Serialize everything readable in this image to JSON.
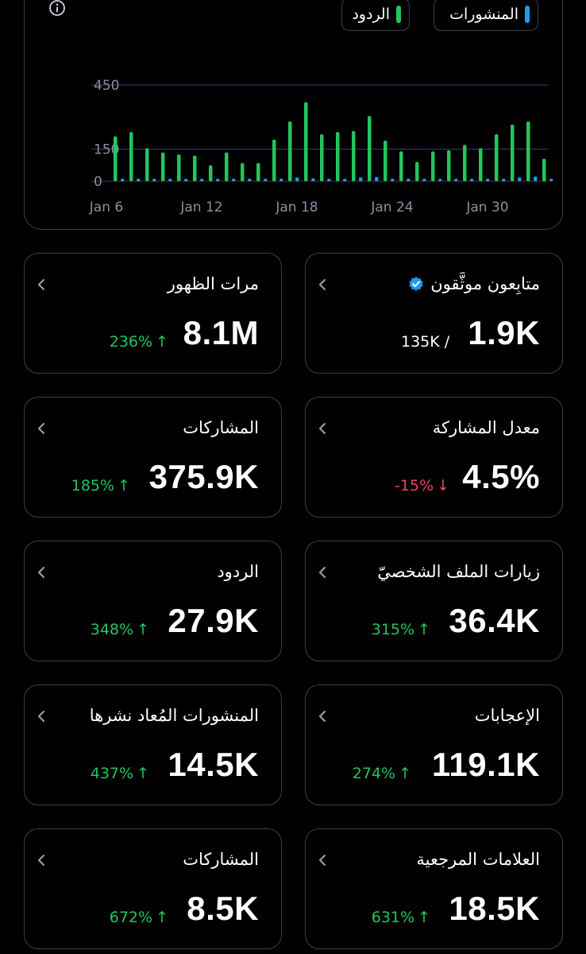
{
  "chart": {
    "legend": [
      {
        "label": "المنشورات",
        "color": "#1d9bf0"
      },
      {
        "label": "الردود",
        "color": "#22c55e"
      }
    ]
  },
  "chart_data": {
    "type": "bar",
    "title": "",
    "xlabel": "",
    "ylabel": "",
    "y_tick_labels": [
      "450",
      "150",
      "0"
    ],
    "ylim": [
      0,
      450
    ],
    "x_tick_labels": [
      "Jan 6",
      "Jan 12",
      "Jan 18",
      "Jan 24",
      "Jan 30"
    ],
    "categories": [
      "Jan 6",
      "Jan 7",
      "Jan 8",
      "Jan 9",
      "Jan 10",
      "Jan 11",
      "Jan 12",
      "Jan 13",
      "Jan 14",
      "Jan 15",
      "Jan 16",
      "Jan 17",
      "Jan 18",
      "Jan 19",
      "Jan 20",
      "Jan 21",
      "Jan 22",
      "Jan 23",
      "Jan 24",
      "Jan 25",
      "Jan 26",
      "Jan 27",
      "Jan 28",
      "Jan 29",
      "Jan 30",
      "Jan 31",
      "Feb 1",
      "Feb 2"
    ],
    "grid": true,
    "series": [
      {
        "name": "الردود",
        "color": "#22c55e",
        "values": [
          210,
          230,
          155,
          135,
          125,
          120,
          75,
          135,
          85,
          85,
          195,
          280,
          370,
          220,
          230,
          235,
          305,
          190,
          140,
          90,
          140,
          145,
          170,
          155,
          220,
          265,
          280,
          105
        ]
      },
      {
        "name": "المنشورات",
        "color": "#1d9bf0",
        "values": [
          12,
          12,
          12,
          12,
          12,
          12,
          12,
          12,
          12,
          12,
          12,
          18,
          14,
          12,
          12,
          18,
          20,
          12,
          12,
          12,
          12,
          12,
          12,
          12,
          12,
          18,
          22,
          12
        ]
      }
    ]
  },
  "cards": [
    {
      "title": "متابِعون موثَّقون",
      "value": "1.9K",
      "sub": "135K / ",
      "verified": true
    },
    {
      "title": "مرات الظهور",
      "value": "8.1M",
      "change": "236%",
      "dir": "up"
    },
    {
      "title": "معدل المشاركة",
      "value": "4.5%",
      "change": "-15%",
      "dir": "down"
    },
    {
      "title": "المشاركات",
      "value": "375.9K",
      "change": "185%",
      "dir": "up"
    },
    {
      "title": "زيارات الملف الشخصيّ",
      "value": "36.4K",
      "change": "315%",
      "dir": "up"
    },
    {
      "title": "الردود",
      "value": "27.9K",
      "change": "348%",
      "dir": "up"
    },
    {
      "title": "الإعجابات",
      "value": "119.1K",
      "change": "274%",
      "dir": "up"
    },
    {
      "title": "المنشورات المُعاد نشرها",
      "value": "14.5K",
      "change": "437%",
      "dir": "up"
    },
    {
      "title": "العلامات المرجعية",
      "value": "18.5K",
      "change": "631%",
      "dir": "up"
    },
    {
      "title": "المشاركات",
      "value": "8.5K",
      "change": "672%",
      "dir": "up"
    }
  ]
}
